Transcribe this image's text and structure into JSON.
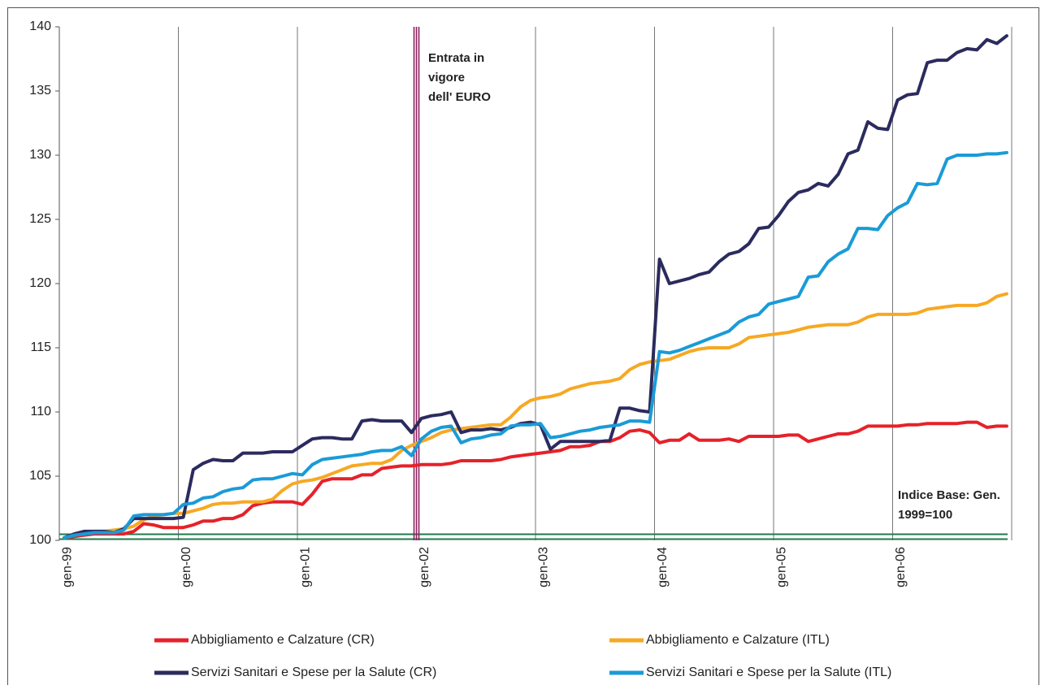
{
  "chart_data": {
    "type": "line",
    "categories": [
      "gen-99",
      null,
      null,
      null,
      null,
      null,
      null,
      null,
      null,
      null,
      null,
      null,
      "gen-00",
      null,
      null,
      null,
      null,
      null,
      null,
      null,
      null,
      null,
      null,
      null,
      "gen-01",
      null,
      null,
      null,
      null,
      null,
      null,
      null,
      null,
      null,
      null,
      null,
      "gen-02",
      null,
      null,
      null,
      null,
      null,
      null,
      null,
      null,
      null,
      null,
      null,
      "gen-03",
      null,
      null,
      null,
      null,
      null,
      null,
      null,
      null,
      null,
      null,
      null,
      "gen-04",
      null,
      null,
      null,
      null,
      null,
      null,
      null,
      null,
      null,
      null,
      null,
      "gen-05",
      null,
      null,
      null,
      null,
      null,
      null,
      null,
      null,
      null,
      null,
      null,
      "gen-06",
      null,
      null,
      null,
      null,
      null,
      null,
      null,
      null,
      null,
      null,
      null
    ],
    "ylim": [
      100,
      140
    ],
    "yticks": [
      100,
      105,
      110,
      115,
      120,
      125,
      130,
      135,
      140
    ],
    "grid": "x",
    "annotations": [
      [
        "Entrata in",
        "vigore",
        "dell' EURO"
      ],
      [
        "Indice Base: Gen.",
        "1999=100"
      ]
    ],
    "series": [
      {
        "name": "Abbigliamento e Calzature (CR)",
        "color": "#e62129",
        "values": [
          100.2,
          100.3,
          100.4,
          100.5,
          100.5,
          100.5,
          100.5,
          100.7,
          101.3,
          101.2,
          101.0,
          101.0,
          101.0,
          101.2,
          101.5,
          101.5,
          101.7,
          101.7,
          102.0,
          102.7,
          102.9,
          103.0,
          103.0,
          103.0,
          102.8,
          103.6,
          104.6,
          104.8,
          104.8,
          104.8,
          105.1,
          105.1,
          105.6,
          105.7,
          105.8,
          105.8,
          105.9,
          105.9,
          105.9,
          106.0,
          106.2,
          106.2,
          106.2,
          106.2,
          106.3,
          106.5,
          106.6,
          106.7,
          106.8,
          106.9,
          107.0,
          107.3,
          107.3,
          107.4,
          107.7,
          107.7,
          108.0,
          108.5,
          108.6,
          108.4,
          107.6,
          107.8,
          107.8,
          108.3,
          107.8,
          107.8,
          107.8,
          107.9,
          107.7,
          108.1,
          108.1,
          108.1,
          108.1,
          108.2,
          108.2,
          107.7,
          107.9,
          108.1,
          108.3,
          108.3,
          108.5,
          108.9,
          108.9,
          108.9,
          108.9,
          109.0,
          109.0,
          109.1,
          109.1,
          109.1,
          109.1,
          109.2,
          109.2,
          108.8,
          108.9,
          108.9
        ]
      },
      {
        "name": "Abbigliamento e Calzature (ITL)",
        "color": "#f7a823",
        "values": [
          100.2,
          100.4,
          100.6,
          100.7,
          100.7,
          100.8,
          100.9,
          101.1,
          101.6,
          101.9,
          102.0,
          102.1,
          102.1,
          102.3,
          102.5,
          102.8,
          102.9,
          102.9,
          103.0,
          103.0,
          103.0,
          103.2,
          103.9,
          104.4,
          104.6,
          104.7,
          104.9,
          105.2,
          105.5,
          105.8,
          105.9,
          106.0,
          106.0,
          106.3,
          107.0,
          107.4,
          107.7,
          108.0,
          108.4,
          108.6,
          108.7,
          108.8,
          108.9,
          109.0,
          109.0,
          109.6,
          110.4,
          110.9,
          111.1,
          111.2,
          111.4,
          111.8,
          112.0,
          112.2,
          112.3,
          112.4,
          112.6,
          113.3,
          113.7,
          113.9,
          114.0,
          114.1,
          114.4,
          114.7,
          114.9,
          115.0,
          115.0,
          115.0,
          115.3,
          115.8,
          115.9,
          116.0,
          116.1,
          116.2,
          116.4,
          116.6,
          116.7,
          116.8,
          116.8,
          116.8,
          117.0,
          117.4,
          117.6,
          117.6,
          117.6,
          117.6,
          117.7,
          118.0,
          118.1,
          118.2,
          118.3,
          118.3,
          118.3,
          118.5,
          119.0,
          119.2
        ]
      },
      {
        "name": "Servizi Sanitari e Spese per la Salute (CR)",
        "color": "#2b2b5e",
        "values": [
          100.2,
          100.5,
          100.7,
          100.7,
          100.7,
          100.6,
          100.9,
          101.7,
          101.7,
          101.7,
          101.7,
          101.7,
          101.8,
          105.5,
          106.0,
          106.3,
          106.2,
          106.2,
          106.8,
          106.8,
          106.8,
          106.9,
          106.9,
          106.9,
          107.4,
          107.9,
          108.0,
          108.0,
          107.9,
          107.9,
          109.3,
          109.4,
          109.3,
          109.3,
          109.3,
          108.4,
          109.5,
          109.7,
          109.8,
          110.0,
          108.4,
          108.6,
          108.6,
          108.7,
          108.6,
          108.8,
          109.1,
          109.2,
          109.0,
          107.1,
          107.7,
          107.7,
          107.7,
          107.7,
          107.7,
          107.8,
          110.3,
          110.3,
          110.1,
          110.0,
          121.9,
          120.0,
          120.2,
          120.4,
          120.7,
          120.9,
          121.7,
          122.3,
          122.5,
          123.1,
          124.3,
          124.4,
          125.3,
          126.4,
          127.1,
          127.3,
          127.8,
          127.6,
          128.5,
          130.1,
          130.4,
          132.6,
          132.1,
          132.0,
          134.3,
          134.7,
          134.8,
          137.2,
          137.4,
          137.4,
          138.0,
          138.3,
          138.2,
          139.0,
          138.7,
          139.3
        ]
      },
      {
        "name": "Servizi Sanitari e Spese per la Salute (ITL)",
        "color": "#1a9bd7",
        "values": [
          100.2,
          100.4,
          100.5,
          100.6,
          100.6,
          100.6,
          100.8,
          101.9,
          102.0,
          102.0,
          102.0,
          102.1,
          102.8,
          102.9,
          103.3,
          103.4,
          103.8,
          104.0,
          104.1,
          104.7,
          104.8,
          104.8,
          105.0,
          105.2,
          105.1,
          105.9,
          106.3,
          106.4,
          106.5,
          106.6,
          106.7,
          106.9,
          107.0,
          107.0,
          107.3,
          106.6,
          107.9,
          108.5,
          108.8,
          108.9,
          107.6,
          107.9,
          108.0,
          108.2,
          108.3,
          108.9,
          109.0,
          109.0,
          109.1,
          108.0,
          108.1,
          108.3,
          108.5,
          108.6,
          108.8,
          108.9,
          109.0,
          109.3,
          109.3,
          109.2,
          114.7,
          114.6,
          114.8,
          115.1,
          115.4,
          115.7,
          116.0,
          116.3,
          117.0,
          117.4,
          117.6,
          118.4,
          118.6,
          118.8,
          119.0,
          120.5,
          120.6,
          121.7,
          122.3,
          122.7,
          124.3,
          124.3,
          124.2,
          125.3,
          125.9,
          126.3,
          127.8,
          127.7,
          127.8,
          129.7,
          130.0,
          130.0,
          130.0,
          130.1,
          130.1,
          130.2
        ]
      }
    ]
  }
}
